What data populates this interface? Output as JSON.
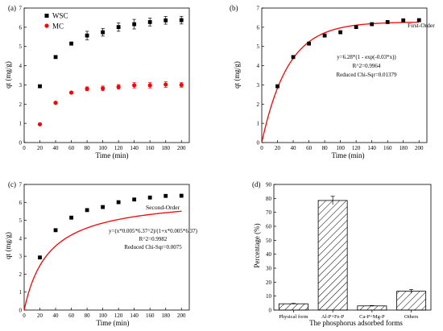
{
  "chart_data": [
    {
      "panel_label": "(a)",
      "type": "scatter",
      "xlabel": "Time (min)",
      "ylabel": "qt (mg/g)",
      "xlim": [
        0,
        210
      ],
      "ylim": [
        0,
        7
      ],
      "xticks": [
        0,
        20,
        40,
        60,
        80,
        100,
        120,
        140,
        160,
        180,
        200
      ],
      "yticks": [
        0,
        1,
        2,
        3,
        4,
        5,
        6,
        7
      ],
      "legend_position": "top-left",
      "series": [
        {
          "name": "WSC",
          "color": "#000000",
          "marker": "square",
          "x": [
            20,
            40,
            60,
            80,
            100,
            120,
            140,
            160,
            180,
            200
          ],
          "y": [
            2.93,
            4.45,
            5.15,
            5.57,
            5.74,
            6.01,
            6.16,
            6.27,
            6.36,
            6.37
          ],
          "err": [
            0.05,
            0.06,
            0.08,
            0.22,
            0.2,
            0.22,
            0.25,
            0.2,
            0.2,
            0.2
          ]
        },
        {
          "name": "MC",
          "color": "#ff0000",
          "marker": "circle",
          "x": [
            20,
            40,
            60,
            80,
            100,
            120,
            140,
            160,
            180,
            200
          ],
          "y": [
            0.95,
            2.07,
            2.6,
            2.8,
            2.82,
            2.9,
            2.98,
            2.98,
            3.02,
            3.0
          ],
          "err": [
            0.03,
            0.05,
            0.05,
            0.1,
            0.12,
            0.12,
            0.14,
            0.14,
            0.15,
            0.12
          ]
        }
      ]
    },
    {
      "panel_label": "(b)",
      "type": "scatter",
      "xlabel": "Time (min)",
      "ylabel": "qt (mg/g)",
      "xlim": [
        0,
        210
      ],
      "ylim": [
        0,
        7
      ],
      "xticks": [
        0,
        20,
        40,
        60,
        80,
        100,
        120,
        140,
        160,
        180,
        200
      ],
      "yticks": [
        0,
        1,
        2,
        3,
        4,
        5,
        6,
        7
      ],
      "fit_label": "First-Order",
      "model": {
        "kind": "first-order",
        "qe": 6.28,
        "k": 0.03
      },
      "annotation": [
        "y=6.28*(1 - exp(-0.03*x))",
        "R^2=0.9964",
        "Reduced Chi-Sqr=0.01379"
      ],
      "series": [
        {
          "color": "#000000",
          "marker": "square",
          "x": [
            20,
            40,
            60,
            80,
            100,
            120,
            140,
            160,
            180,
            200
          ],
          "y": [
            2.93,
            4.45,
            5.15,
            5.57,
            5.74,
            6.01,
            6.16,
            6.27,
            6.36,
            6.37
          ]
        }
      ],
      "fit_color": "#ff0000"
    },
    {
      "panel_label": "(c)",
      "type": "scatter",
      "xlabel": "Time (min)",
      "ylabel": "qt (mg/g)",
      "xlim": [
        0,
        210
      ],
      "ylim": [
        0,
        7
      ],
      "xticks": [
        0,
        20,
        40,
        60,
        80,
        100,
        120,
        140,
        160,
        180,
        200
      ],
      "yticks": [
        0,
        1,
        2,
        3,
        4,
        5,
        6,
        7
      ],
      "fit_label": "Second-Order",
      "model": {
        "kind": "second-order",
        "qe": 6.37,
        "k": 0.005
      },
      "annotation": [
        "y=(x*0.005*6.37^2)/(1+x*0.005*6.37)",
        "R^2=0.9982",
        "Reduced Chi-Sqr=0.0075"
      ],
      "series": [
        {
          "color": "#000000",
          "marker": "square",
          "x": [
            20,
            40,
            60,
            80,
            100,
            120,
            140,
            160,
            180,
            200
          ],
          "y": [
            2.93,
            4.45,
            5.15,
            5.57,
            5.74,
            6.01,
            6.16,
            6.27,
            6.36,
            6.37
          ]
        }
      ],
      "fit_color": "#ff0000"
    },
    {
      "panel_label": "(d)",
      "type": "bar",
      "xlabel": "The phosphorus adsorbed forms",
      "ylabel": "Percentage (%)",
      "ylim": [
        0,
        90
      ],
      "yticks": [
        0,
        10,
        20,
        30,
        40,
        50,
        60,
        70,
        80,
        90
      ],
      "categories": [
        "Physical form",
        "Al-P+Fe-P",
        "Ca-P+Mg-P",
        "Others"
      ],
      "values": [
        4.5,
        78.5,
        3.0,
        13.5
      ],
      "err": [
        0.3,
        3.0,
        0.3,
        1.3
      ],
      "fill": "hatched"
    }
  ]
}
